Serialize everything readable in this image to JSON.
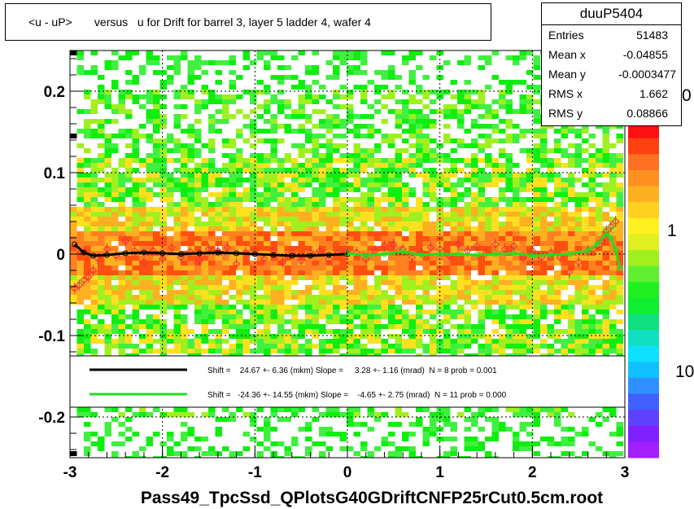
{
  "chart_data": {
    "type": "heatmap",
    "title": "<u - uP>       versus   u for Drift for barrel 3, layer 5 ladder 4, wafer 4",
    "xlabel": "Pass49_TpcSsd_QPlotsG40GDriftCNFP25rCut0.5cm.root",
    "ylabel": "",
    "xlim": [
      -3,
      3
    ],
    "ylim": [
      -0.25,
      0.25
    ],
    "x_ticks": [
      "-3",
      "-2",
      "-1",
      "0",
      "1",
      "2",
      "3"
    ],
    "y_ticks": [
      "-0.2",
      "-0.1",
      "0",
      "0.1",
      "0.2"
    ],
    "colorbar_ticks": [
      "1",
      "10"
    ],
    "colorbar_top_partial": "0",
    "grid": true,
    "stats": {
      "name": "duuP5404",
      "rows": [
        {
          "label": "Entries",
          "value": "51483"
        },
        {
          "label": "Mean x",
          "value": "-0.04855"
        },
        {
          "label": "Mean y",
          "value": "-0.0003477"
        },
        {
          "label": "RMS x",
          "value": "1.662"
        },
        {
          "label": "RMS y",
          "value": "0.08866"
        }
      ]
    },
    "legend": [
      {
        "text": "Shift =    24.67 +- 6.36 (mkm) Slope =     3.28 +- 1.16 (mrad)  N = 8 prob = 0.001",
        "color": "#000000"
      },
      {
        "text": "Shift =   -24.36 +- 14.55 (mkm) Slope =    -4.65 +- 2.75 (mrad)  N = 11 prob = 0.000",
        "color": "#22dd22"
      }
    ],
    "series": [
      {
        "color": "#000000",
        "x": [
          -2.95,
          -2.85,
          -2.75,
          -2.6,
          -2.4,
          -2.2,
          -2.0,
          -1.8,
          -1.6,
          -1.4,
          -1.2,
          -1.0,
          -0.8,
          -0.6,
          -0.4,
          -0.2,
          0.0
        ],
        "values": [
          0.012,
          0.002,
          -0.002,
          -0.001,
          0.001,
          0.002,
          0.001,
          0.0,
          0.001,
          0.002,
          0.001,
          0.0,
          -0.001,
          -0.002,
          -0.002,
          -0.001,
          0.0
        ]
      },
      {
        "color": "#22dd22",
        "x": [
          0.0,
          0.2,
          0.4,
          0.6,
          0.8,
          1.0,
          1.2,
          1.4,
          1.6,
          1.8,
          2.0,
          2.2,
          2.4,
          2.6,
          2.7,
          2.8,
          2.85,
          2.9,
          2.95
        ],
        "values": [
          0.001,
          -0.002,
          0.0,
          0.003,
          -0.001,
          0.0,
          0.0,
          -0.001,
          0.0,
          0.001,
          -0.002,
          -0.001,
          0.0,
          0.004,
          0.012,
          0.025,
          0.02,
          0.005,
          -0.018
        ]
      }
    ],
    "profile_points": {
      "x": [
        -2.95,
        -2.9,
        -2.85,
        -2.8,
        -2.75,
        -2.7,
        -2.6,
        -2.5,
        -2.4,
        -2.3,
        -2.2,
        -2.1,
        -2.0,
        -1.9,
        -1.8,
        -1.7,
        -1.6,
        -1.5,
        -1.4,
        -1.3,
        -1.2,
        -1.1,
        -1.0,
        -0.9,
        -0.8,
        -0.7,
        -0.6,
        -0.5,
        -0.4,
        -0.3,
        -0.2,
        -0.1,
        0.0,
        0.1,
        0.2,
        0.3,
        0.4,
        0.5,
        0.6,
        0.7,
        0.8,
        0.9,
        1.0,
        1.1,
        1.2,
        1.3,
        1.4,
        1.5,
        1.6,
        1.7,
        1.8,
        1.9,
        2.0,
        2.1,
        2.2,
        2.3,
        2.4,
        2.5,
        2.6,
        2.7,
        2.75,
        2.8,
        2.85,
        2.9
      ],
      "values": [
        -0.042,
        -0.038,
        -0.032,
        -0.028,
        -0.02,
        -0.005,
        0.006,
        -0.002,
        0.016,
        0.004,
        -0.01,
        0.004,
        -0.006,
        0.008,
        -0.004,
        0.003,
        -0.008,
        0.006,
        0.004,
        0.008,
        -0.012,
        0.002,
        0.004,
        -0.006,
        0.004,
        -0.01,
        0.002,
        -0.008,
        0.002,
        0.004,
        -0.006,
        0.002,
        0.003,
        0.002,
        -0.006,
        0.004,
        0.01,
        0.012,
        0.006,
        -0.004,
        0.002,
        0.008,
        0.006,
        -0.002,
        0.012,
        0.004,
        0.01,
        0.002,
        0.012,
        0.006,
        0.01,
        -0.004,
        0.004,
        -0.004,
        0.002,
        -0.004,
        -0.022,
        -0.01,
        0.004,
        0.01,
        0.016,
        0.028,
        0.034,
        0.04
      ]
    },
    "heat_bands": [
      {
        "y_lo": -0.12,
        "y_hi": -0.03,
        "color": "#ffd020"
      },
      {
        "y_lo": -0.03,
        "y_hi": 0.03,
        "color": "#ff9020"
      },
      {
        "y_lo": 0.03,
        "y_hi": 0.12,
        "color": "#ffd020"
      }
    ]
  }
}
